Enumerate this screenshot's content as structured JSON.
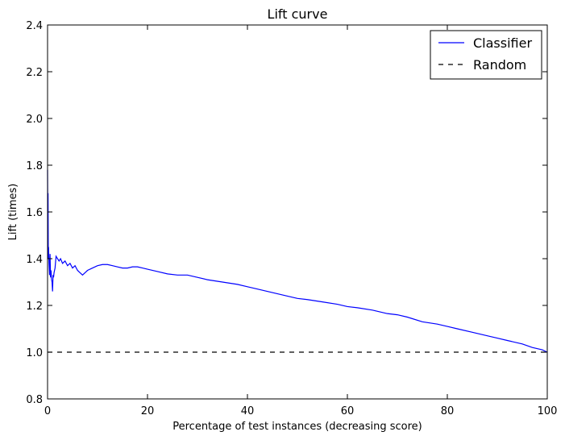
{
  "chart_data": {
    "type": "line",
    "title": "Lift curve",
    "xlabel": "Percentage of test instances (decreasing score)",
    "ylabel": "Lift (times)",
    "xlim": [
      0,
      100
    ],
    "ylim": [
      0.8,
      2.4
    ],
    "xticks": [
      0,
      20,
      40,
      60,
      80,
      100
    ],
    "yticks": [
      0.8,
      1.0,
      1.2,
      1.4,
      1.6,
      1.8,
      2.0,
      2.2,
      2.4
    ],
    "grid": false,
    "legend": {
      "position": "top-right",
      "entries": [
        "Classifier",
        "Random"
      ]
    },
    "series": [
      {
        "name": "Classifier",
        "color": "#0000ff",
        "style": "solid",
        "x": [
          0.0,
          0.05,
          0.1,
          0.15,
          0.2,
          0.3,
          0.4,
          0.5,
          0.6,
          0.7,
          0.8,
          0.9,
          1.0,
          1.1,
          1.2,
          1.3,
          1.5,
          1.7,
          2.0,
          2.3,
          2.6,
          3.0,
          3.5,
          4.0,
          4.5,
          5.0,
          5.5,
          6.0,
          6.5,
          7.0,
          7.5,
          8.0,
          9.0,
          10.0,
          11.0,
          12.0,
          13.0,
          14.0,
          15.0,
          16.0,
          17.0,
          18.0,
          19.0,
          20.0,
          22.0,
          24.0,
          26.0,
          28.0,
          30.0,
          32.0,
          35.0,
          38.0,
          40.0,
          42.0,
          45.0,
          48.0,
          50.0,
          52.0,
          55.0,
          58.0,
          60.0,
          62.0,
          65.0,
          68.0,
          70.0,
          72.0,
          75.0,
          78.0,
          80.0,
          82.0,
          85.0,
          88.0,
          90.0,
          92.0,
          95.0,
          97.0,
          99.0,
          100.0
        ],
        "y": [
          1.78,
          1.55,
          1.68,
          1.4,
          1.45,
          1.38,
          1.33,
          1.42,
          1.32,
          1.35,
          1.31,
          1.3,
          1.26,
          1.33,
          1.32,
          1.34,
          1.36,
          1.41,
          1.4,
          1.39,
          1.4,
          1.38,
          1.39,
          1.37,
          1.38,
          1.36,
          1.37,
          1.35,
          1.34,
          1.33,
          1.34,
          1.35,
          1.36,
          1.37,
          1.375,
          1.375,
          1.37,
          1.365,
          1.36,
          1.36,
          1.365,
          1.365,
          1.36,
          1.355,
          1.345,
          1.335,
          1.33,
          1.33,
          1.32,
          1.31,
          1.3,
          1.29,
          1.28,
          1.27,
          1.255,
          1.24,
          1.23,
          1.225,
          1.215,
          1.205,
          1.195,
          1.19,
          1.18,
          1.165,
          1.16,
          1.15,
          1.13,
          1.12,
          1.11,
          1.1,
          1.085,
          1.07,
          1.06,
          1.05,
          1.035,
          1.02,
          1.01,
          1.0
        ]
      },
      {
        "name": "Random",
        "color": "#000000",
        "style": "dashed",
        "x": [
          0,
          100
        ],
        "y": [
          1.0,
          1.0
        ]
      }
    ]
  }
}
